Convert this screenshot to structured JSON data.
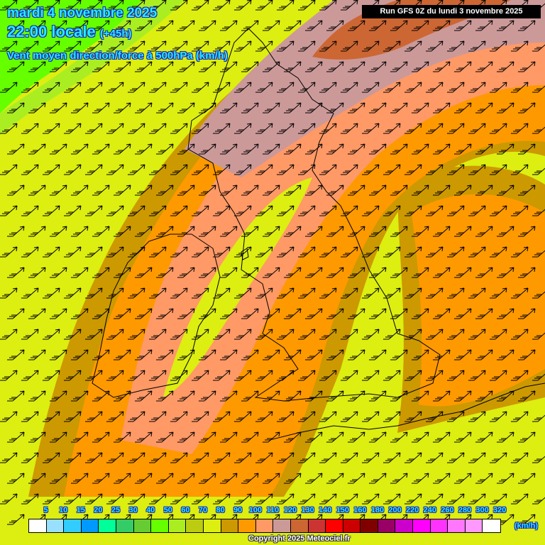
{
  "header": {
    "date": "mardi 4 novembre 2025",
    "time": "22:00 locale",
    "lead": "(+45h)",
    "parameter": "Vent moyen direction/force à 500hPa (km/h)",
    "run": "Run GFS 0Z du lundi 3 novembre 2025"
  },
  "legend": {
    "labels": [
      "5",
      "10",
      "15",
      "20",
      "25",
      "30",
      "40",
      "50",
      "60",
      "70",
      "80",
      "90",
      "100",
      "110",
      "120",
      "130",
      "140",
      "150",
      "160",
      "180",
      "200",
      "220",
      "240",
      "260",
      "280",
      "300",
      "320"
    ],
    "colors": [
      "#ffffff",
      "#99e0ff",
      "#33ccff",
      "#0099ff",
      "#00ff99",
      "#33cc66",
      "#66cc33",
      "#66ff00",
      "#aaee22",
      "#bbcc11",
      "#ddee11",
      "#cc9900",
      "#ff9900",
      "#ff9966",
      "#cc9999",
      "#cc6633",
      "#cc3333",
      "#ff0000",
      "#cc0000",
      "#800000",
      "#990066",
      "#cc00cc",
      "#ff00ff",
      "#ff33ff",
      "#ff77ff",
      "#ff99ff",
      "#ffffff"
    ],
    "unit": "(km/h)"
  },
  "wind_direction": "south-west",
  "copyright": "Copyright 2025 Meteociel.fr"
}
